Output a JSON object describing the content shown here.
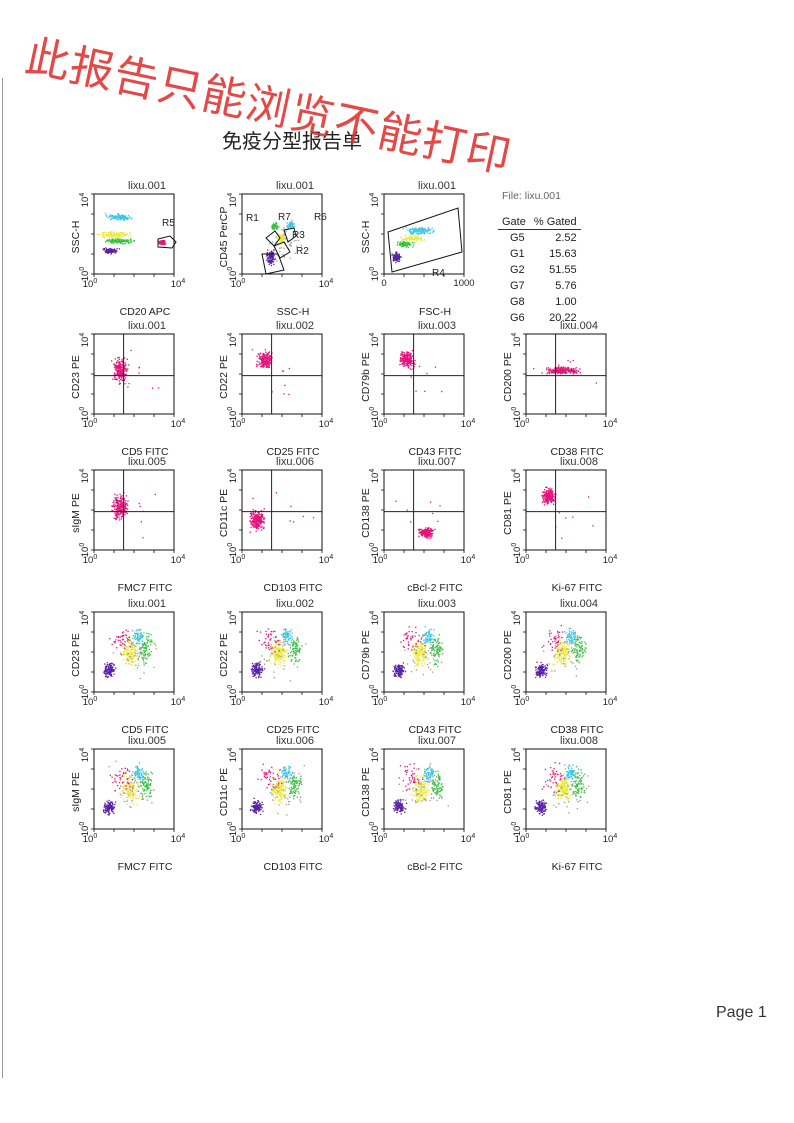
{
  "watermark": "此报告只能浏览不能打印",
  "title": "免疫分型报告单",
  "page_label": "Page 1",
  "stats": {
    "file": "File: lixu.001",
    "headers": [
      "Gate",
      "% Gated"
    ],
    "rows": [
      [
        "G5",
        "2.52"
      ],
      [
        "G1",
        "15.63"
      ],
      [
        "G2",
        "51.55"
      ],
      [
        "G7",
        "5.76"
      ],
      [
        "G8",
        "1.00"
      ],
      [
        "G6",
        "20.22"
      ]
    ]
  },
  "colors": {
    "magenta": "#e0157a",
    "cyan": "#39c6e6",
    "green": "#35c13f",
    "yellow": "#ece93a",
    "purple": "#5a22a8",
    "grey": "#9a9a9a",
    "watermark": "#e0302d"
  },
  "plots": [
    {
      "title": "lixu.001",
      "xlabel": "CD20 APC",
      "ylabel": "SSC-H",
      "type": "gate1",
      "gate_labels": [
        "R5"
      ]
    },
    {
      "title": "lixu.001",
      "xlabel": "SSC-H",
      "ylabel": "CD45 PerCP",
      "type": "gate2",
      "gate_labels": [
        "R1",
        "R7",
        "R6",
        "R3",
        "R2"
      ]
    },
    {
      "title": "lixu.001",
      "xlabel": "FSC-H",
      "ylabel": "SSC-H",
      "type": "gate3",
      "gate_labels": [
        "R4"
      ],
      "x_ticks": [
        "0",
        "1000"
      ]
    },
    {
      "title": "lixu.001",
      "xlabel": "CD5 FITC",
      "ylabel": "CD23 PE",
      "type": "quad",
      "cluster": "center"
    },
    {
      "title": "lixu.002",
      "xlabel": "CD25 FITC",
      "ylabel": "CD22 PE",
      "type": "quad",
      "cluster": "upperleft"
    },
    {
      "title": "lixu.003",
      "xlabel": "CD43 FITC",
      "ylabel": "CD79b PE",
      "type": "quad",
      "cluster": "upperleft"
    },
    {
      "title": "lixu.004",
      "xlabel": "CD38 FITC",
      "ylabel": "CD200 PE",
      "type": "quad",
      "cluster": "band"
    },
    {
      "title": "lixu.005",
      "xlabel": "FMC7 FITC",
      "ylabel": "sIgM PE",
      "type": "quad",
      "cluster": "center"
    },
    {
      "title": "lixu.006",
      "xlabel": "CD103 FITC",
      "ylabel": "CD11c PE",
      "type": "quad",
      "cluster": "lowerleft"
    },
    {
      "title": "lixu.007",
      "xlabel": "cBcl-2 FITC",
      "ylabel": "CD138 PE",
      "type": "quad",
      "cluster": "lowerright"
    },
    {
      "title": "lixu.008",
      "xlabel": "Ki-67 FITC",
      "ylabel": "CD81 PE",
      "type": "quad",
      "cluster": "upperleft"
    },
    {
      "title": "lixu.001",
      "xlabel": "CD5 FITC",
      "ylabel": "CD23 PE",
      "type": "multi"
    },
    {
      "title": "lixu.002",
      "xlabel": "CD25 FITC",
      "ylabel": "CD22 PE",
      "type": "multi"
    },
    {
      "title": "lixu.003",
      "xlabel": "CD43 FITC",
      "ylabel": "CD79b PE",
      "type": "multi"
    },
    {
      "title": "lixu.004",
      "xlabel": "CD38 FITC",
      "ylabel": "CD200 PE",
      "type": "multi"
    },
    {
      "title": "lixu.005",
      "xlabel": "FMC7 FITC",
      "ylabel": "sIgM PE",
      "type": "multi"
    },
    {
      "title": "lixu.006",
      "xlabel": "CD103 FITC",
      "ylabel": "CD11c PE",
      "type": "multi"
    },
    {
      "title": "lixu.007",
      "xlabel": "cBcl-2 FITC",
      "ylabel": "CD138 PE",
      "type": "multi"
    },
    {
      "title": "lixu.008",
      "xlabel": "Ki-67 FITC",
      "ylabel": "CD81 PE",
      "type": "multi"
    }
  ]
}
